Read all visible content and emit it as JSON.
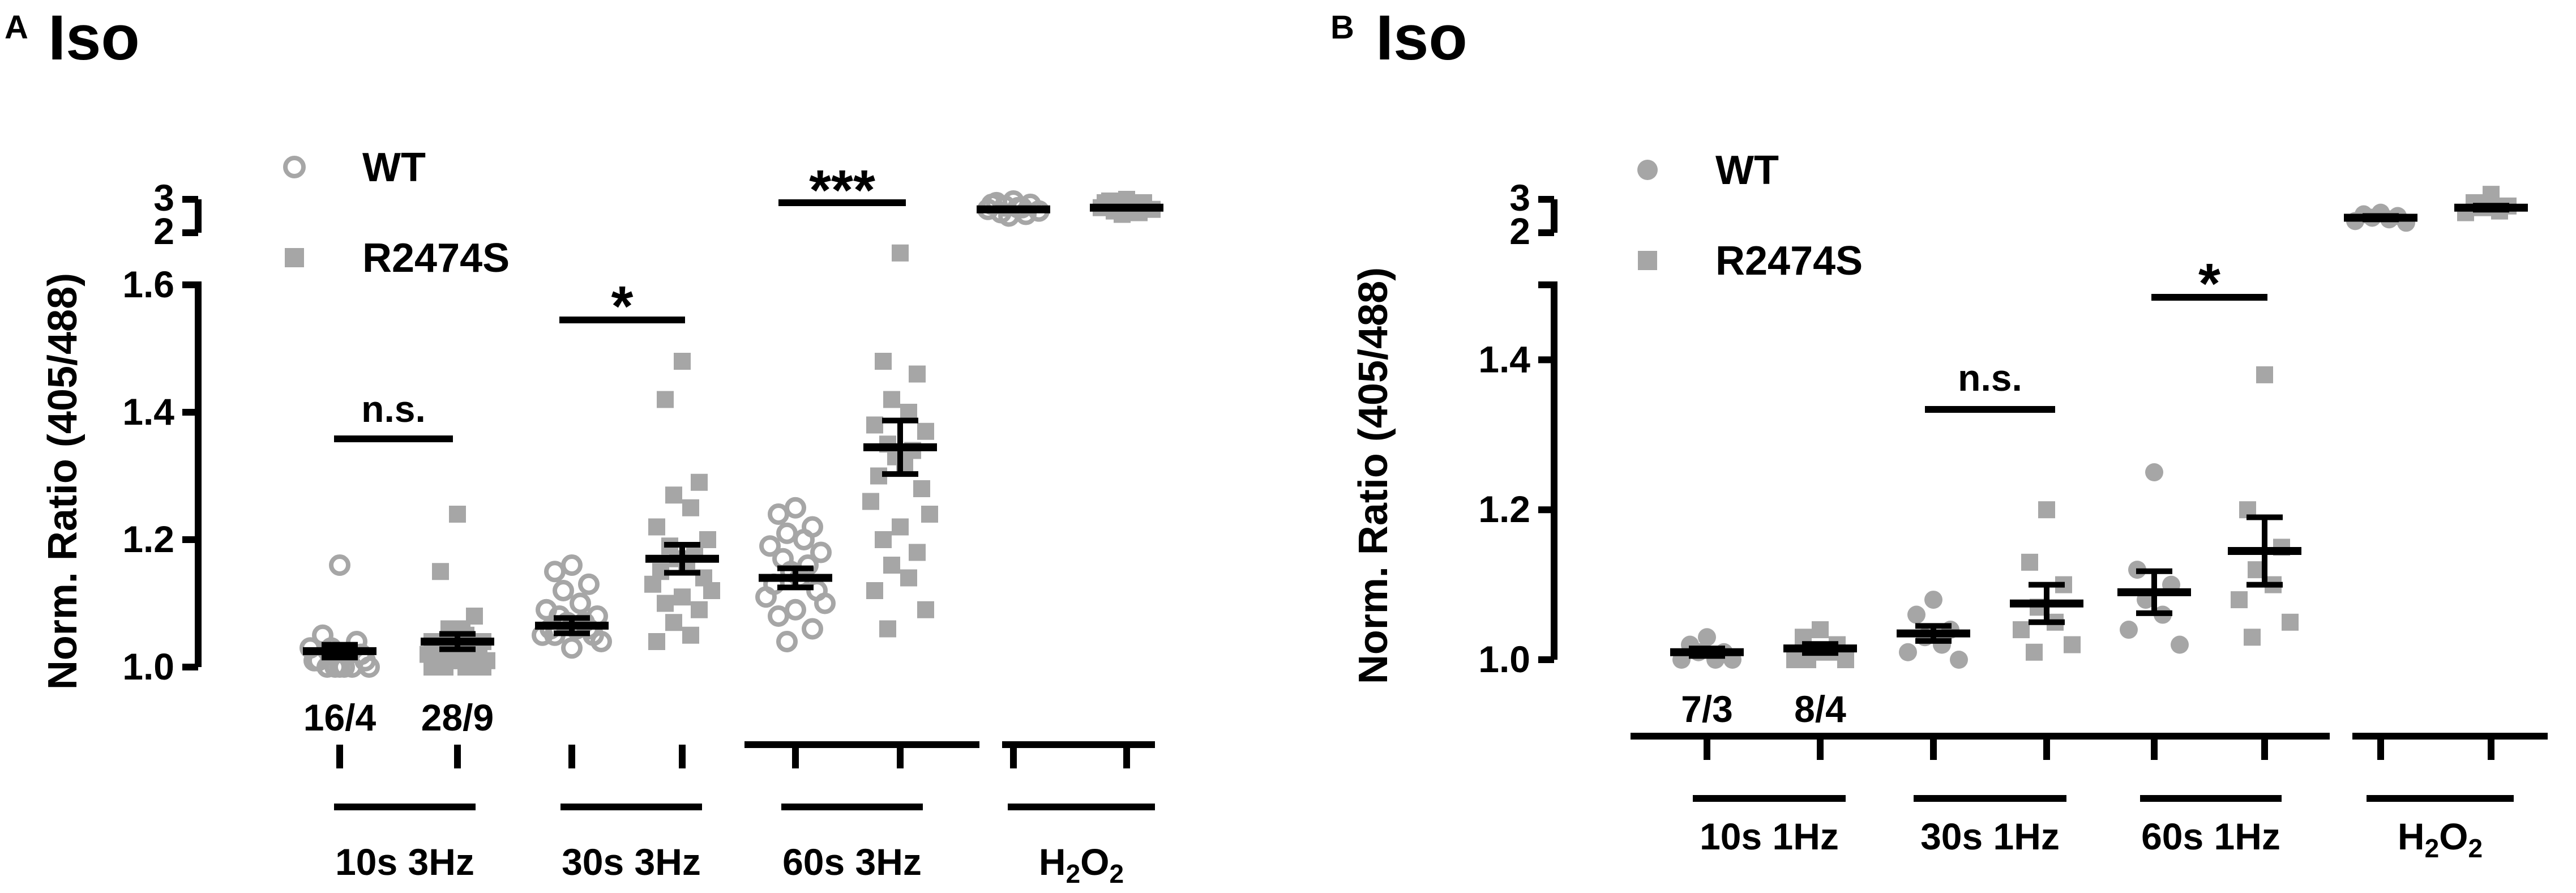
{
  "chart_data": [
    {
      "panel": "A",
      "title": "Iso",
      "type": "scatter",
      "ylabel": "Norm. Ratio (405/488)",
      "yticks_lower": [
        "1.0",
        "1.2",
        "1.4",
        "1.6"
      ],
      "yticks_upper": [
        "2",
        "3"
      ],
      "ylim_lower": [
        1.0,
        1.6
      ],
      "ylim_upper": [
        2,
        3
      ],
      "legend": [
        {
          "name": "WT",
          "marker": "open-circle",
          "color": "#a6a6a6"
        },
        {
          "name": "R2474S",
          "marker": "filled-square",
          "color": "#a6a6a6"
        }
      ],
      "legend_position": "top-left",
      "groups": [
        {
          "label": "10s 3Hz",
          "n_labels": [
            "16/4",
            "28/9"
          ],
          "wt": {
            "mean": 1.025,
            "sem": 0.01,
            "points": [
              1.16,
              1.05,
              1.04,
              1.03,
              1.02,
              1.01,
              1.01,
              1.0,
              1.0,
              1.0,
              1.0,
              1.01,
              1.02,
              1.03,
              1.0,
              1.0
            ]
          },
          "r2474s": {
            "mean": 1.04,
            "sem": 0.012,
            "points": [
              1.24,
              1.15,
              1.08,
              1.06,
              1.05,
              1.04,
              1.04,
              1.03,
              1.03,
              1.03,
              1.02,
              1.02,
              1.02,
              1.02,
              1.01,
              1.01,
              1.01,
              1.01,
              1.01,
              1.0,
              1.0,
              1.0,
              1.0,
              1.0,
              1.05,
              1.06,
              1.04,
              1.03
            ]
          },
          "sig": "n.s."
        },
        {
          "label": "30s 3Hz",
          "wt": {
            "mean": 1.065,
            "sem": 0.012,
            "points": [
              1.16,
              1.15,
              1.13,
              1.12,
              1.1,
              1.09,
              1.08,
              1.08,
              1.07,
              1.07,
              1.06,
              1.06,
              1.05,
              1.05,
              1.04,
              1.03,
              1.05,
              1.06
            ]
          },
          "r2474s": {
            "mean": 1.17,
            "sem": 0.022,
            "points": [
              1.48,
              1.42,
              1.29,
              1.27,
              1.25,
              1.22,
              1.2,
              1.19,
              1.18,
              1.17,
              1.16,
              1.15,
              1.14,
              1.13,
              1.12,
              1.11,
              1.1,
              1.09,
              1.07,
              1.05,
              1.04
            ]
          },
          "sig": "*"
        },
        {
          "label": "60s 3Hz",
          "wt": {
            "mean": 1.14,
            "sem": 0.015,
            "points": [
              1.25,
              1.24,
              1.22,
              1.21,
              1.2,
              1.19,
              1.18,
              1.17,
              1.16,
              1.15,
              1.14,
              1.13,
              1.12,
              1.11,
              1.1,
              1.09,
              1.08,
              1.06,
              1.04
            ]
          },
          "r2474s": {
            "mean": 1.345,
            "sem": 0.042,
            "points": [
              1.65,
              1.48,
              1.46,
              1.42,
              1.4,
              1.38,
              1.37,
              1.35,
              1.34,
              1.33,
              1.32,
              1.3,
              1.28,
              1.26,
              1.24,
              1.22,
              1.2,
              1.18,
              1.16,
              1.14,
              1.12,
              1.09,
              1.06
            ]
          },
          "sig": "***"
        },
        {
          "label": "H2O2",
          "wt": {
            "mean": 2.7,
            "sem": 0.03,
            "points": [
              2.95,
              2.9,
              2.85,
              2.8,
              2.75,
              2.7,
              2.65,
              2.6,
              2.55,
              2.5,
              2.75,
              2.85
            ]
          },
          "r2474s": {
            "mean": 2.75,
            "sem": 0.03,
            "points": [
              3.0,
              2.95,
              2.9,
              2.85,
              2.8,
              2.75,
              2.7,
              2.65,
              2.6,
              2.55,
              2.8,
              2.9
            ]
          },
          "sig": ""
        }
      ]
    },
    {
      "panel": "B",
      "title": "Iso",
      "type": "scatter",
      "ylabel": "Norm. Ratio (405/488)",
      "yticks_lower": [
        "1.0",
        "1.2",
        "1.4"
      ],
      "yticks_upper": [
        "2",
        "3"
      ],
      "ylim_lower": [
        1.0,
        1.5
      ],
      "ylim_upper": [
        2,
        3
      ],
      "legend": [
        {
          "name": "WT",
          "marker": "filled-circle",
          "color": "#a6a6a6"
        },
        {
          "name": "R2474S",
          "marker": "filled-square",
          "color": "#a6a6a6"
        }
      ],
      "legend_position": "top-left",
      "groups": [
        {
          "label": "10s 1Hz",
          "n_labels": [
            "7/3",
            "8/4"
          ],
          "wt": {
            "mean": 1.01,
            "sem": 0.005,
            "points": [
              1.03,
              1.02,
              1.01,
              1.01,
              1.0,
              1.0,
              1.0
            ]
          },
          "r2474s": {
            "mean": 1.015,
            "sem": 0.006,
            "points": [
              1.04,
              1.03,
              1.02,
              1.01,
              1.01,
              1.0,
              1.0,
              1.0
            ]
          },
          "sig": ""
        },
        {
          "label": "30s 1Hz",
          "wt": {
            "mean": 1.035,
            "sem": 0.01,
            "points": [
              1.08,
              1.06,
              1.04,
              1.03,
              1.02,
              1.01,
              1.0
            ]
          },
          "r2474s": {
            "mean": 1.075,
            "sem": 0.025,
            "points": [
              1.2,
              1.13,
              1.1,
              1.07,
              1.05,
              1.04,
              1.02,
              1.01
            ]
          },
          "sig": "n.s."
        },
        {
          "label": "60s 1Hz",
          "wt": {
            "mean": 1.09,
            "sem": 0.028,
            "points": [
              1.25,
              1.12,
              1.1,
              1.08,
              1.06,
              1.04,
              1.02
            ]
          },
          "r2474s": {
            "mean": 1.145,
            "sem": 0.045,
            "points": [
              1.38,
              1.2,
              1.15,
              1.12,
              1.1,
              1.08,
              1.05,
              1.03
            ]
          },
          "sig": "*"
        },
        {
          "label": "H2O2",
          "wt": {
            "mean": 2.45,
            "sem": 0.05,
            "points": [
              2.6,
              2.55,
              2.5,
              2.45,
              2.4,
              2.35,
              2.3
            ]
          },
          "r2474s": {
            "mean": 2.75,
            "sem": 0.06,
            "points": [
              3.15,
              2.9,
              2.8,
              2.75,
              2.65,
              2.6
            ]
          },
          "sig": ""
        }
      ]
    }
  ]
}
